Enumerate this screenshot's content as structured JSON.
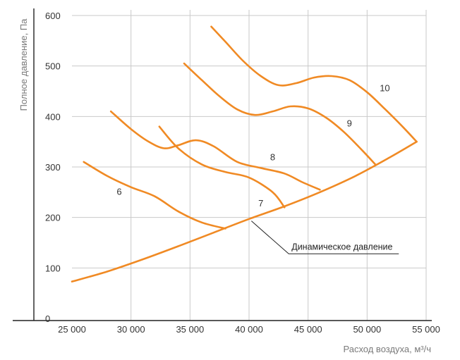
{
  "chart_data": {
    "type": "line",
    "xlabel": "Расход воздуха, м³/ч",
    "ylabel": "Полное давление, Па",
    "xlim": [
      25000,
      55000
    ],
    "ylim": [
      0,
      600
    ],
    "x_ticks": [
      {
        "value": 25000,
        "label": "25 000"
      },
      {
        "value": 30000,
        "label": "30 000"
      },
      {
        "value": 35000,
        "label": "35 000"
      },
      {
        "value": 40000,
        "label": "40 000"
      },
      {
        "value": 45000,
        "label": "45 000"
      },
      {
        "value": 50000,
        "label": "50 000"
      },
      {
        "value": 55000,
        "label": "55 000"
      }
    ],
    "y_ticks": [
      {
        "value": 0,
        "label": "0"
      },
      {
        "value": 100,
        "label": "100"
      },
      {
        "value": 200,
        "label": "200"
      },
      {
        "value": 300,
        "label": "300"
      },
      {
        "value": 400,
        "label": "400"
      },
      {
        "value": 500,
        "label": "500"
      },
      {
        "value": 600,
        "label": "600"
      }
    ],
    "grid": true,
    "line_color": "#f08a24",
    "series": [
      {
        "name": "6",
        "label_at": [
          29000,
          245
        ],
        "x": [
          26000,
          28000,
          30000,
          32000,
          34000,
          36000,
          38000
        ],
        "y": [
          310,
          282,
          260,
          242,
          212,
          190,
          178
        ]
      },
      {
        "name": "7",
        "label_at": [
          41000,
          222
        ],
        "x": [
          32400,
          34000,
          36000,
          38000,
          40000,
          42000,
          43000
        ],
        "y": [
          380,
          337,
          305,
          290,
          279,
          250,
          220
        ]
      },
      {
        "name": "8",
        "label_at": [
          42000,
          313
        ],
        "x": [
          28300,
          30000,
          31500,
          32800,
          34000,
          35500,
          37000,
          39000,
          41000,
          43000,
          44500,
          46000
        ],
        "y": [
          410,
          375,
          350,
          337,
          343,
          353,
          341,
          310,
          298,
          287,
          270,
          255
        ]
      },
      {
        "name": "9",
        "label_at": [
          48500,
          380
        ],
        "x": [
          34500,
          36000,
          37500,
          39000,
          40500,
          42000,
          43500,
          45000,
          46500,
          48000,
          49500,
          50700
        ],
        "y": [
          505,
          472,
          440,
          414,
          403,
          410,
          420,
          416,
          398,
          370,
          335,
          305
        ]
      },
      {
        "name": "10",
        "label_at": [
          51500,
          450
        ],
        "x": [
          36800,
          38000,
          39500,
          41000,
          42500,
          44000,
          45500,
          47000,
          48500,
          50000,
          51500,
          53000,
          54200
        ],
        "y": [
          578,
          548,
          510,
          480,
          462,
          466,
          477,
          480,
          472,
          448,
          415,
          380,
          350
        ]
      },
      {
        "name": "Динамическое давление",
        "x": [
          25000,
          28000,
          31000,
          34000,
          37000,
          40000,
          43000,
          46000,
          49000,
          52000,
          54200
        ],
        "y": [
          73,
          93,
          117,
          143,
          170,
          197,
          222,
          250,
          282,
          320,
          350
        ]
      }
    ],
    "annotations": [
      {
        "text": "Динамическое давление",
        "points_to": [
          40200,
          193
        ],
        "label_at": [
          43600,
          128
        ]
      }
    ]
  }
}
